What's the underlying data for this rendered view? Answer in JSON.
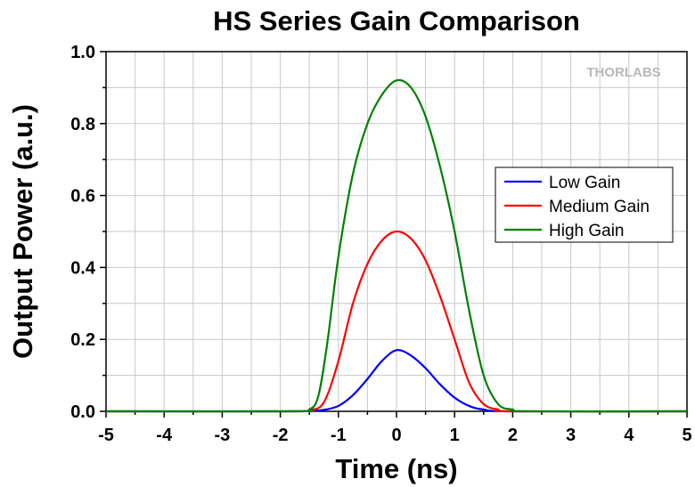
{
  "chart_data": {
    "type": "line",
    "title": "HS Series Gain Comparison",
    "xlabel": "Time (ns)",
    "ylabel": "Output Power (a.u.)",
    "xlim": [
      -5,
      5
    ],
    "ylim": [
      0,
      1.0
    ],
    "xticks": [
      "-5",
      "-4",
      "-3",
      "-2",
      "-1",
      "0",
      "1",
      "2",
      "3",
      "4",
      "5"
    ],
    "yticks": [
      "0.0",
      "0.2",
      "0.4",
      "0.6",
      "0.8",
      "1.0"
    ],
    "grid": true,
    "legend_position": "right",
    "logo": "THORLABS",
    "series": [
      {
        "name": "Low Gain",
        "color": "#0000ff",
        "x": [
          -5,
          -2,
          -1.5,
          -1.25,
          -1.0,
          -0.75,
          -0.5,
          -0.25,
          0,
          0.25,
          0.5,
          0.75,
          1.0,
          1.25,
          1.5,
          2.0,
          5
        ],
        "y": [
          0.0,
          0.0,
          0.001,
          0.004,
          0.015,
          0.045,
          0.09,
          0.14,
          0.17,
          0.155,
          0.12,
          0.075,
          0.038,
          0.015,
          0.005,
          0.0,
          0.0
        ]
      },
      {
        "name": "Medium Gain",
        "color": "#ff0000",
        "x": [
          -5,
          -1.75,
          -1.5,
          -1.25,
          -1.0,
          -0.75,
          -0.5,
          -0.25,
          0,
          0.25,
          0.5,
          0.75,
          1.0,
          1.25,
          1.5,
          1.75,
          2.0,
          5
        ],
        "y": [
          0.0,
          0.0,
          0.003,
          0.025,
          0.14,
          0.3,
          0.41,
          0.475,
          0.5,
          0.48,
          0.42,
          0.32,
          0.2,
          0.08,
          0.02,
          0.005,
          0.0,
          0.0
        ]
      },
      {
        "name": "High Gain",
        "color": "#008000",
        "x": [
          -5,
          -1.75,
          -1.5,
          -1.35,
          -1.2,
          -1.0,
          -0.75,
          -0.5,
          -0.25,
          0,
          0.25,
          0.5,
          0.75,
          1.0,
          1.25,
          1.5,
          1.75,
          2.0,
          2.25,
          5
        ],
        "y": [
          0.0,
          0.0,
          0.005,
          0.04,
          0.18,
          0.43,
          0.66,
          0.8,
          0.88,
          0.92,
          0.9,
          0.82,
          0.68,
          0.5,
          0.28,
          0.1,
          0.02,
          0.005,
          0.0,
          0.0
        ]
      }
    ]
  }
}
